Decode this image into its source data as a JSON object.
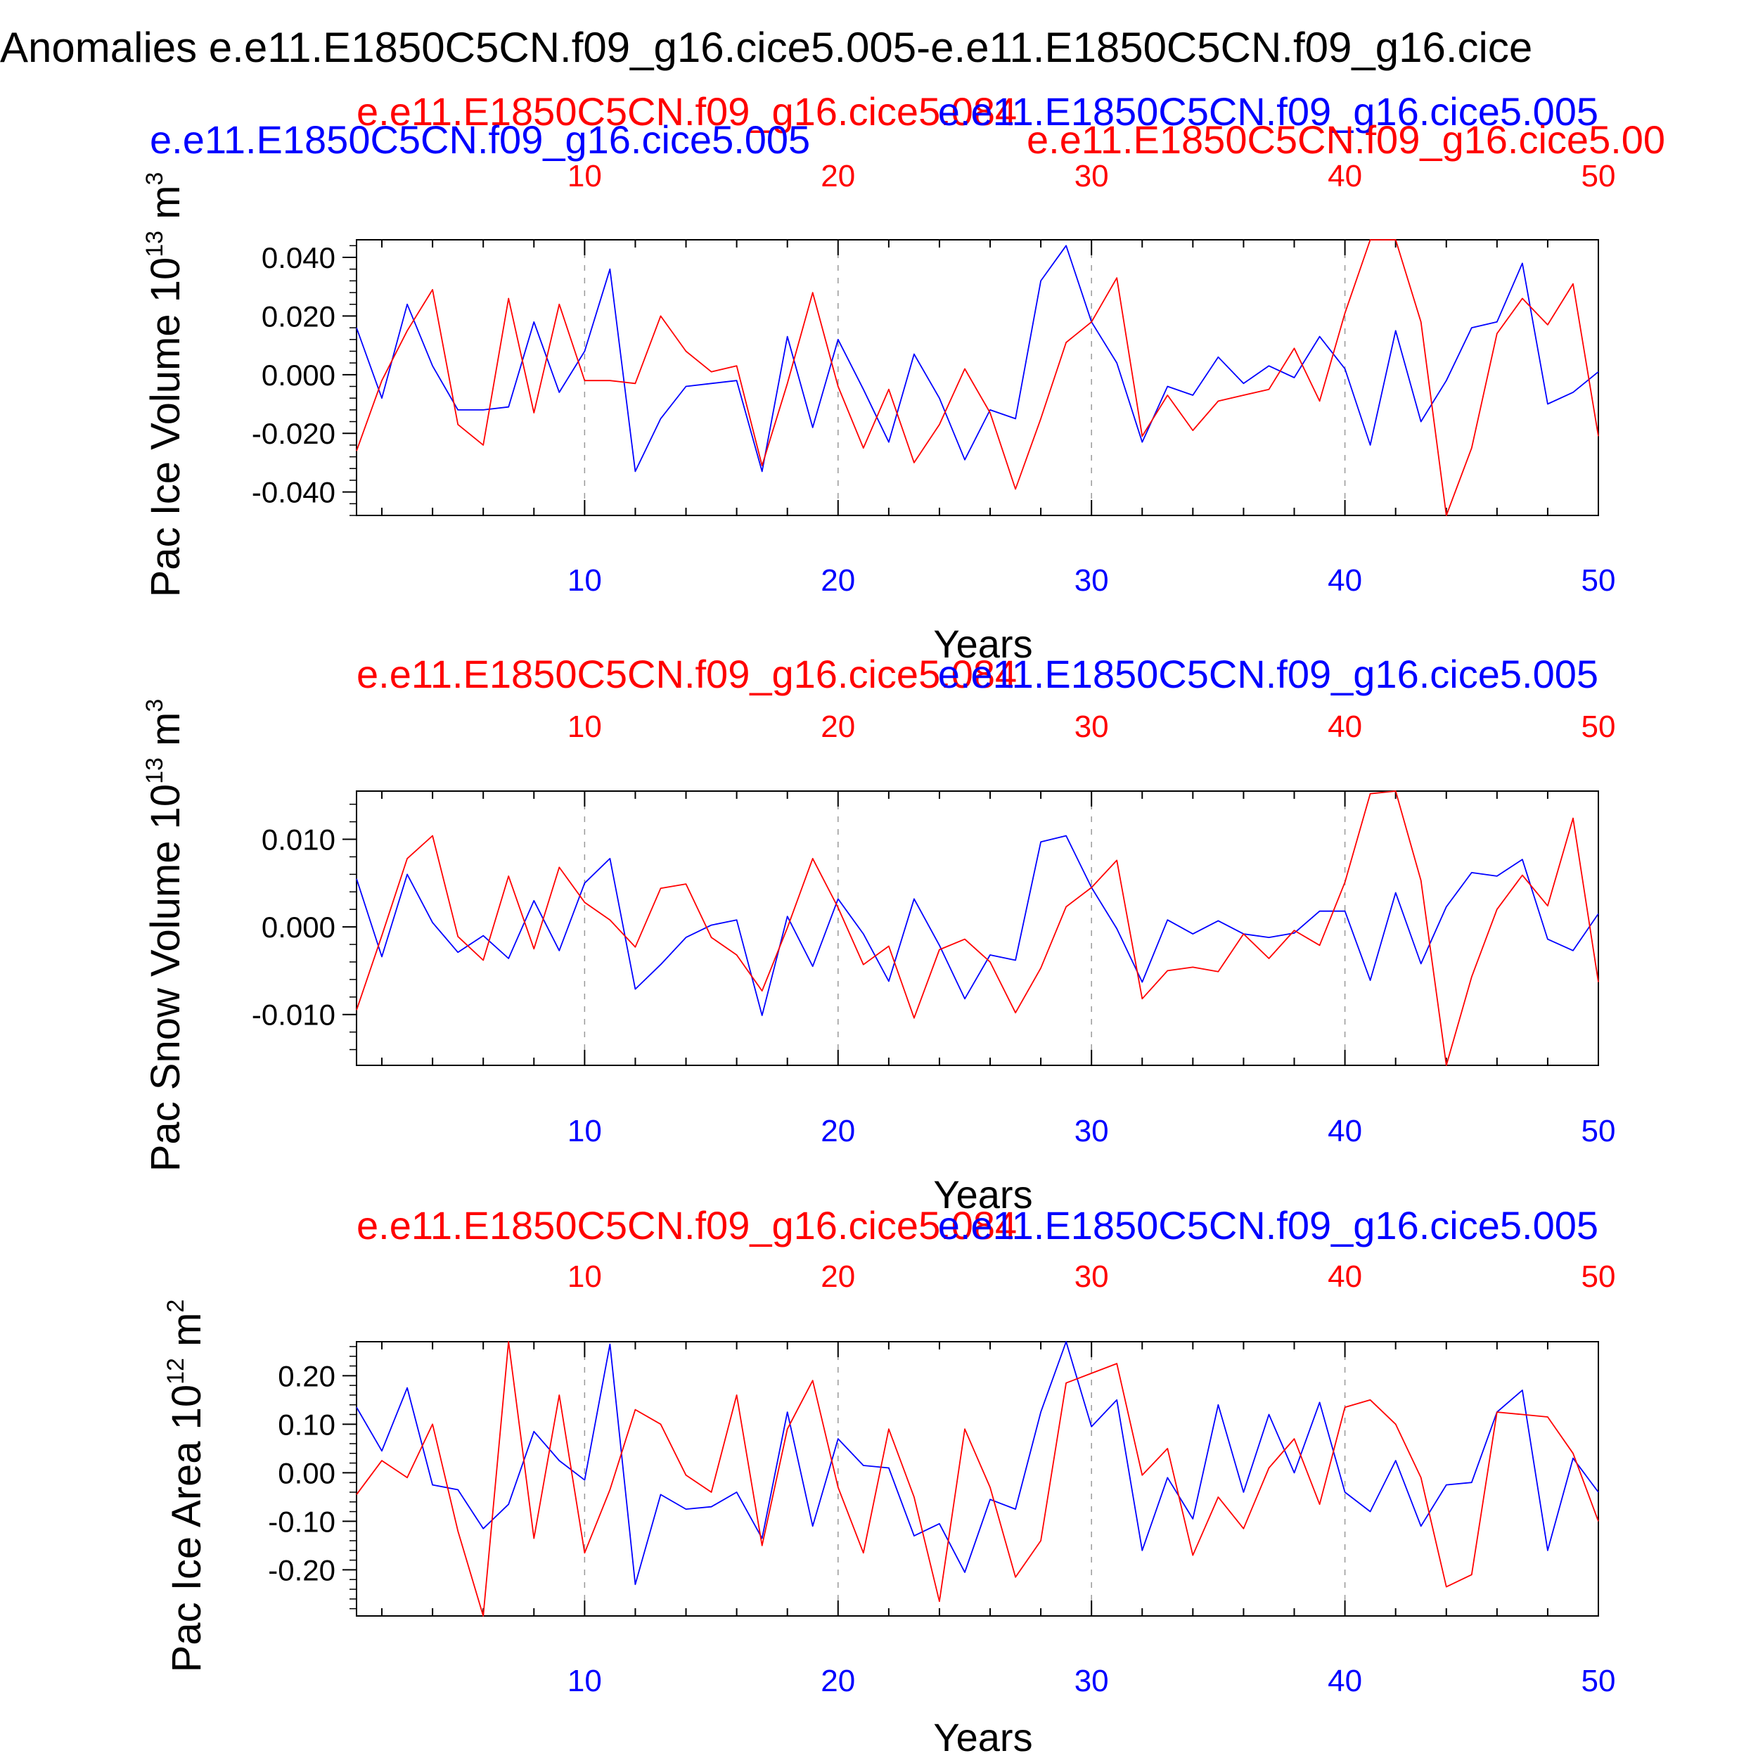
{
  "title": "Anomalies e.e11.E1850C5CN.f09_g16.cice5.005-e.e11.E1850C5CN.f09_g16.cice",
  "colors": {
    "series_a": "#0000ff",
    "series_b": "#ff0000",
    "axis": "#000000",
    "grid": "#999999"
  },
  "chart_data": [
    {
      "type": "line",
      "ylabel_main": "Pac Ice Volume 10",
      "ylabel_exp": "13",
      "ylabel_unit": " m",
      "ylabel_unit_exp": "3",
      "xlabel": "Years",
      "xlim": [
        1,
        50
      ],
      "ylim": [
        -0.048,
        0.046
      ],
      "yticks": [
        -0.04,
        -0.02,
        0.0,
        0.02,
        0.04
      ],
      "ytick_labels": [
        "-0.040",
        "-0.020",
        "0.000",
        "0.020",
        "0.040"
      ],
      "xticks": [
        10,
        20,
        30,
        40,
        50
      ],
      "xtick_labels": [
        "10",
        "20",
        "30",
        "40",
        "50"
      ],
      "top_legend": {
        "red_left": "e.e11.E1850C5CN.f09_g16.cice5.084",
        "blue_right": "e.e11.E1850C5CN.f09_g16.cice5.005",
        "blue_left": "e.e11.E1850C5CN.f09_g16.cice5.005",
        "red_right": "e.e11.E1850C5CN.f09_g16.cice5.00"
      },
      "series": [
        {
          "name": "e.e11.E1850C5CN.f09_g16.cice5.005",
          "color": "blue",
          "values": [
            0.016,
            -0.008,
            0.024,
            0.003,
            -0.012,
            -0.012,
            -0.011,
            0.018,
            -0.006,
            0.008,
            0.036,
            -0.033,
            -0.015,
            -0.004,
            -0.003,
            -0.002,
            -0.033,
            0.013,
            -0.018,
            0.012,
            -0.005,
            -0.023,
            0.007,
            -0.008,
            -0.029,
            -0.012,
            -0.015,
            0.032,
            0.044,
            0.018,
            0.004,
            -0.023,
            -0.004,
            -0.007,
            0.006,
            -0.003,
            0.003,
            -0.001,
            0.013,
            0.002,
            -0.024,
            0.015,
            -0.016,
            -0.002,
            0.016,
            0.018,
            0.038,
            -0.01,
            -0.006,
            0.001
          ]
        },
        {
          "name": "e.e11.E1850C5CN.f09_g16.cice5.084",
          "color": "red",
          "values": [
            -0.026,
            -0.002,
            0.015,
            0.029,
            -0.017,
            -0.024,
            0.026,
            -0.013,
            0.024,
            -0.002,
            -0.002,
            -0.003,
            0.02,
            0.008,
            0.001,
            0.003,
            -0.031,
            -0.003,
            0.028,
            -0.004,
            -0.025,
            -0.005,
            -0.03,
            -0.017,
            0.002,
            -0.013,
            -0.039,
            -0.015,
            0.011,
            0.018,
            0.033,
            -0.021,
            -0.007,
            -0.019,
            -0.009,
            -0.007,
            -0.005,
            0.009,
            -0.009,
            0.021,
            0.046,
            0.046,
            0.018,
            -0.048,
            -0.025,
            0.014,
            0.026,
            0.017,
            0.031,
            -0.021
          ]
        }
      ]
    },
    {
      "type": "line",
      "ylabel_main": "Pac Snow Volume 10",
      "ylabel_exp": "13",
      "ylabel_unit": " m",
      "ylabel_unit_exp": "3",
      "xlabel": "Years",
      "xlim": [
        1,
        50
      ],
      "ylim": [
        -0.0158,
        0.0155
      ],
      "yticks": [
        -0.01,
        0.0,
        0.01
      ],
      "ytick_labels": [
        "-0.010",
        "0.000",
        "0.010"
      ],
      "xticks": [
        10,
        20,
        30,
        40,
        50
      ],
      "xtick_labels": [
        "10",
        "20",
        "30",
        "40",
        "50"
      ],
      "top_legend": {
        "red_left": "e.e11.E1850C5CN.f09_g16.cice5.084",
        "blue_right": "e.e11.E1850C5CN.f09_g16.cice5.005"
      },
      "series": [
        {
          "name": "e.e11.E1850C5CN.f09_g16.cice5.005",
          "color": "blue",
          "values": [
            0.0055,
            -0.0034,
            0.006,
            0.0005,
            -0.0029,
            -0.001,
            -0.0036,
            0.003,
            -0.0027,
            0.005,
            0.0078,
            -0.0071,
            -0.0043,
            -0.0012,
            0.0002,
            0.0008,
            -0.0101,
            0.0012,
            -0.0045,
            0.0032,
            -0.0008,
            -0.0062,
            0.0032,
            -0.0021,
            -0.0082,
            -0.0032,
            -0.0038,
            0.0097,
            0.0104,
            0.0045,
            -0.0002,
            -0.0063,
            0.0008,
            -0.0008,
            0.0007,
            -0.0008,
            -0.0012,
            -0.0007,
            0.0018,
            0.0018,
            -0.0061,
            0.0039,
            -0.0042,
            0.0023,
            0.0062,
            0.0058,
            0.0077,
            -0.0014,
            -0.0027,
            0.0015
          ]
        },
        {
          "name": "e.e11.E1850C5CN.f09_g16.cice5.084",
          "color": "red",
          "values": [
            -0.0095,
            -0.001,
            0.0078,
            0.0104,
            -0.0011,
            -0.0038,
            0.0058,
            -0.0025,
            0.0068,
            0.0028,
            0.0008,
            -0.0023,
            0.0044,
            0.0049,
            -0.0012,
            -0.0032,
            -0.0073,
            -0.0001,
            0.0078,
            0.0022,
            -0.0043,
            -0.0022,
            -0.0104,
            -0.0026,
            -0.0014,
            -0.004,
            -0.0098,
            -0.0047,
            0.0023,
            0.0045,
            0.0076,
            -0.0082,
            -0.005,
            -0.0046,
            -0.0051,
            -0.0008,
            -0.0036,
            -0.0004,
            -0.0021,
            0.0051,
            0.0152,
            0.0155,
            0.0053,
            -0.0158,
            -0.0057,
            0.002,
            0.0059,
            0.0024,
            0.0124,
            -0.0063
          ]
        }
      ]
    },
    {
      "type": "line",
      "ylabel_main": "Pac Ice Area 10",
      "ylabel_exp": "12",
      "ylabel_unit": " m",
      "ylabel_unit_exp": "2",
      "xlabel": "Years",
      "xlim": [
        1,
        50
      ],
      "ylim": [
        -0.295,
        0.27
      ],
      "yticks": [
        -0.2,
        -0.1,
        0.0,
        0.1,
        0.2
      ],
      "ytick_labels": [
        "-0.20",
        "-0.10",
        "0.00",
        "0.10",
        "0.20"
      ],
      "xticks": [
        10,
        20,
        30,
        40,
        50
      ],
      "xtick_labels": [
        "10",
        "20",
        "30",
        "40",
        "50"
      ],
      "top_legend": {
        "red_left": "e.e11.E1850C5CN.f09_g16.cice5.084",
        "blue_right": "e.e11.E1850C5CN.f09_g16.cice5.005"
      },
      "series": [
        {
          "name": "e.e11.E1850C5CN.f09_g16.cice5.005",
          "color": "blue",
          "values": [
            0.135,
            0.045,
            0.175,
            -0.025,
            -0.035,
            -0.115,
            -0.065,
            0.085,
            0.025,
            -0.015,
            0.265,
            -0.23,
            -0.045,
            -0.075,
            -0.07,
            -0.04,
            -0.135,
            0.125,
            -0.11,
            0.07,
            0.015,
            0.01,
            -0.13,
            -0.105,
            -0.205,
            -0.055,
            -0.075,
            0.125,
            0.27,
            0.095,
            0.15,
            -0.16,
            -0.01,
            -0.095,
            0.14,
            -0.04,
            0.12,
            0.0,
            0.145,
            -0.04,
            -0.08,
            0.025,
            -0.11,
            -0.025,
            -0.02,
            0.125,
            0.17,
            -0.16,
            0.03,
            -0.04
          ]
        },
        {
          "name": "e.e11.E1850C5CN.f09_g16.cice5.084",
          "color": "red",
          "values": [
            -0.045,
            0.025,
            -0.01,
            0.1,
            -0.12,
            -0.295,
            0.27,
            -0.135,
            0.16,
            -0.165,
            -0.035,
            0.13,
            0.1,
            -0.005,
            -0.04,
            0.16,
            -0.15,
            0.09,
            0.19,
            -0.03,
            -0.165,
            0.09,
            -0.05,
            -0.265,
            0.09,
            -0.03,
            -0.215,
            -0.14,
            0.185,
            0.205,
            0.225,
            -0.005,
            0.05,
            -0.17,
            -0.05,
            -0.115,
            0.01,
            0.07,
            -0.065,
            0.135,
            0.15,
            0.1,
            -0.01,
            -0.235,
            -0.21,
            0.125,
            0.12,
            0.115,
            0.04,
            -0.1
          ]
        }
      ]
    }
  ]
}
